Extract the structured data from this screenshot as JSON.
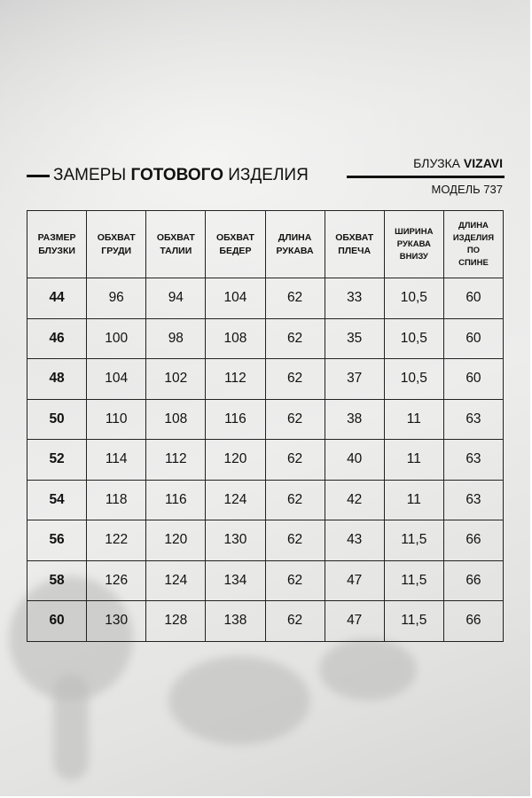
{
  "header": {
    "title_pre": "ЗАМЕРЫ",
    "title_bold": "ГОТОВОГО",
    "title_post": "ИЗДЕЛИЯ",
    "product": "БЛУЗКА",
    "brand": "VIZAVI",
    "model": "МОДЕЛЬ 737"
  },
  "table": {
    "columns": [
      [
        "РАЗМЕР",
        "БЛУЗКИ"
      ],
      [
        "ОБХВАТ",
        "ГРУДИ"
      ],
      [
        "ОБХВАТ",
        "ТАЛИИ"
      ],
      [
        "ОБХВАТ",
        "БЕДЕР"
      ],
      [
        "ДЛИНА",
        "РУКАВА"
      ],
      [
        "ОБХВАТ",
        "ПЛЕЧА"
      ],
      [
        "ШИРИНА",
        "РУКАВА",
        "ВНИЗУ"
      ],
      [
        "ДЛИНА",
        "ИЗДЕЛИЯ",
        "ПО",
        "СПИНЕ"
      ]
    ],
    "rows": [
      [
        "44",
        "96",
        "94",
        "104",
        "62",
        "33",
        "10,5",
        "60"
      ],
      [
        "46",
        "100",
        "98",
        "108",
        "62",
        "35",
        "10,5",
        "60"
      ],
      [
        "48",
        "104",
        "102",
        "112",
        "62",
        "37",
        "10,5",
        "60"
      ],
      [
        "50",
        "110",
        "108",
        "116",
        "62",
        "38",
        "11",
        "63"
      ],
      [
        "52",
        "114",
        "112",
        "120",
        "62",
        "40",
        "11",
        "63"
      ],
      [
        "54",
        "118",
        "116",
        "124",
        "62",
        "42",
        "11",
        "63"
      ],
      [
        "56",
        "122",
        "120",
        "130",
        "62",
        "43",
        "11,5",
        "66"
      ],
      [
        "58",
        "126",
        "124",
        "134",
        "62",
        "47",
        "11,5",
        "66"
      ],
      [
        "60",
        "130",
        "128",
        "138",
        "62",
        "47",
        "11,5",
        "66"
      ]
    ]
  }
}
